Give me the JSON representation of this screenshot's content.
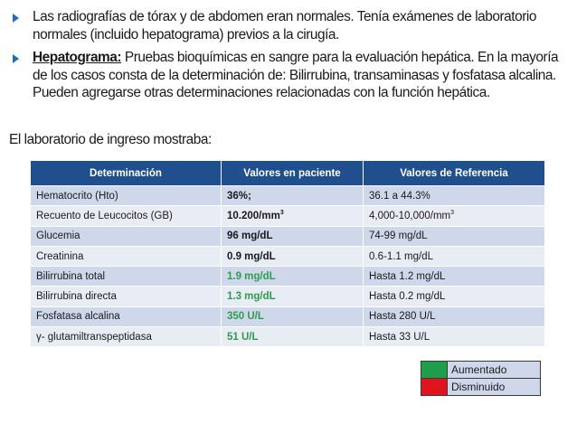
{
  "bullets": [
    {
      "keyword": "",
      "text": "Las radiografías de tórax y de abdomen eran normales. Tenía exámenes de laboratorio normales (incluido hepatograma) previos a la cirugía."
    },
    {
      "keyword": "Hepatograma:",
      "text": " Pruebas bioquímicas en sangre para la evaluación hepática. En la mayoría de los casos consta de la determinación de: Bilirrubina, transaminasas y fosfatasa alcalina. Pueden agregarse otras determinaciones relacionadas con la función hepática."
    }
  ],
  "intro": "El laboratorio de ingreso mostraba:",
  "table": {
    "headers": [
      "Determinación",
      "Valores en paciente",
      "Valores de Referencia"
    ],
    "rows": [
      {
        "name": "Hematocrito (Hto)",
        "value": "36%;",
        "ref": "36.1 a 44.3%",
        "status": "normal",
        "value_sup": "",
        "ref_sup": ""
      },
      {
        "name": "Recuento de Leucocitos (GB)",
        "value": "10.200/mm",
        "value_sup": "3",
        "ref": "4,000-10,000/mm",
        "ref_sup": "3",
        "status": "normal"
      },
      {
        "name": "Glucemia",
        "value": "96 mg/dL",
        "ref": "74-99 mg/dL",
        "status": "normal",
        "value_sup": "",
        "ref_sup": ""
      },
      {
        "name": "Creatinina",
        "value": "0.9 mg/dL",
        "ref": "0.6-1.1 mg/dL",
        "status": "normal",
        "value_sup": "",
        "ref_sup": ""
      },
      {
        "name": "Bilirrubina total",
        "value": "1.9 mg/dL",
        "ref": "Hasta 1.2 mg/dL",
        "status": "up",
        "value_sup": "",
        "ref_sup": ""
      },
      {
        "name": "Bilirrubina directa",
        "value": "1.3 mg/dL",
        "ref": "Hasta 0.2 mg/dL",
        "status": "up",
        "value_sup": "",
        "ref_sup": ""
      },
      {
        "name": "Fosfatasa alcalina",
        "value": "350 U/L",
        "ref": "Hasta 280 U/L",
        "status": "up",
        "value_sup": "",
        "ref_sup": ""
      },
      {
        "name": "γ- glutamiltranspeptidasa",
        "value": "51 U/L",
        "ref": "Hasta 33 U/L",
        "status": "up",
        "value_sup": "",
        "ref_sup": ""
      }
    ]
  },
  "legend": [
    {
      "label": "Aumentado",
      "color": "#1e9e4a"
    },
    {
      "label": "Disminuido",
      "color": "#e0141e"
    }
  ],
  "colors": {
    "header": "#1f4f8c",
    "row_dark": "#cfd8ea",
    "row_light": "#e8ecf5",
    "increased_text": "#2c9e4a",
    "bullet": "#1f6fb8"
  }
}
